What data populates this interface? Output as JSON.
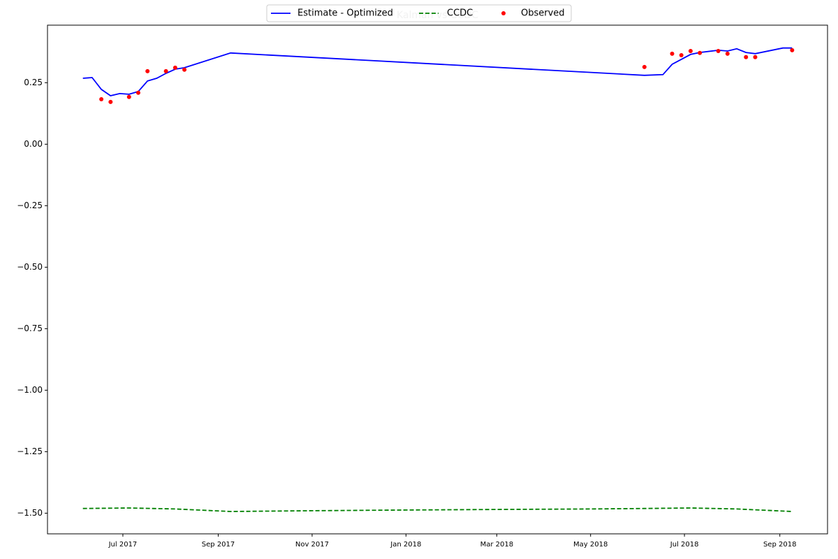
{
  "chart_data": {
    "type": "line",
    "title": "Kalman vs CCDC",
    "xlim": [
      "2017-05-13",
      "2018-10-02"
    ],
    "xticks": [
      {
        "value": "2017-07-01",
        "label": "Jul 2017"
      },
      {
        "value": "2017-09-01",
        "label": "Sep 2017"
      },
      {
        "value": "2017-11-01",
        "label": "Nov 2017"
      },
      {
        "value": "2018-01-01",
        "label": "Jan 2018"
      },
      {
        "value": "2018-03-01",
        "label": "Mar 2018"
      },
      {
        "value": "2018-05-01",
        "label": "May 2018"
      },
      {
        "value": "2018-07-01",
        "label": "Jul 2018"
      },
      {
        "value": "2018-09-01",
        "label": "Sep 2018"
      }
    ],
    "ylim": [
      -1.584,
      0.484
    ],
    "yticks": [
      {
        "value": 0.25,
        "label": "0.25"
      },
      {
        "value": 0,
        "label": "0.00"
      },
      {
        "value": -0.25,
        "label": "−0.25"
      },
      {
        "value": -0.5,
        "label": "−0.50"
      },
      {
        "value": -0.75,
        "label": "−0.75"
      },
      {
        "value": -1,
        "label": "−1.00"
      },
      {
        "value": -1.25,
        "label": "−1.25"
      },
      {
        "value": -1.5,
        "label": "−1.50"
      }
    ],
    "legend": "upper center",
    "series": [
      {
        "name": "Estimate - Optimized",
        "color": "#0000ff",
        "style": "solid",
        "x": [
          "2017-06-05",
          "2017-06-11",
          "2017-06-17",
          "2017-06-23",
          "2017-06-29",
          "2017-07-05",
          "2017-07-11",
          "2017-07-17",
          "2017-07-23",
          "2017-07-29",
          "2017-08-04",
          "2017-08-10",
          "2017-09-09",
          "2018-06-05",
          "2018-06-17",
          "2018-06-23",
          "2018-06-29",
          "2018-07-05",
          "2018-07-11",
          "2018-07-23",
          "2018-07-29",
          "2018-08-04",
          "2018-08-10",
          "2018-08-16",
          "2018-09-03",
          "2018-09-09"
        ],
        "values": [
          0.268,
          0.271,
          0.223,
          0.197,
          0.206,
          0.203,
          0.214,
          0.257,
          0.268,
          0.288,
          0.305,
          0.311,
          0.371,
          0.28,
          0.283,
          0.325,
          0.345,
          0.365,
          0.373,
          0.382,
          0.379,
          0.388,
          0.373,
          0.368,
          0.391,
          0.391
        ]
      },
      {
        "name": "CCDC",
        "color": "#008000",
        "style": "dashed",
        "x": [
          "2017-06-05",
          "2017-07-05",
          "2017-08-04",
          "2017-09-09",
          "2017-11-01",
          "2018-01-01",
          "2018-03-01",
          "2018-05-01",
          "2018-06-05",
          "2018-07-05",
          "2018-08-04",
          "2018-09-09"
        ],
        "values": [
          -1.481,
          -1.479,
          -1.483,
          -1.493,
          -1.49,
          -1.487,
          -1.485,
          -1.483,
          -1.481,
          -1.479,
          -1.483,
          -1.493
        ]
      },
      {
        "name": "Observed",
        "color": "#ff0000",
        "style": "points",
        "x": [
          "2017-06-17",
          "2017-06-23",
          "2017-07-05",
          "2017-07-11",
          "2017-07-17",
          "2017-07-29",
          "2017-08-04",
          "2017-08-10",
          "2018-06-05",
          "2018-06-23",
          "2018-06-29",
          "2018-07-05",
          "2018-07-11",
          "2018-07-23",
          "2018-07-29",
          "2018-08-10",
          "2018-08-16",
          "2018-09-09"
        ],
        "values": [
          0.183,
          0.172,
          0.192,
          0.209,
          0.297,
          0.297,
          0.311,
          0.303,
          0.314,
          0.368,
          0.362,
          0.379,
          0.371,
          0.379,
          0.368,
          0.354,
          0.354,
          0.382
        ]
      }
    ]
  }
}
